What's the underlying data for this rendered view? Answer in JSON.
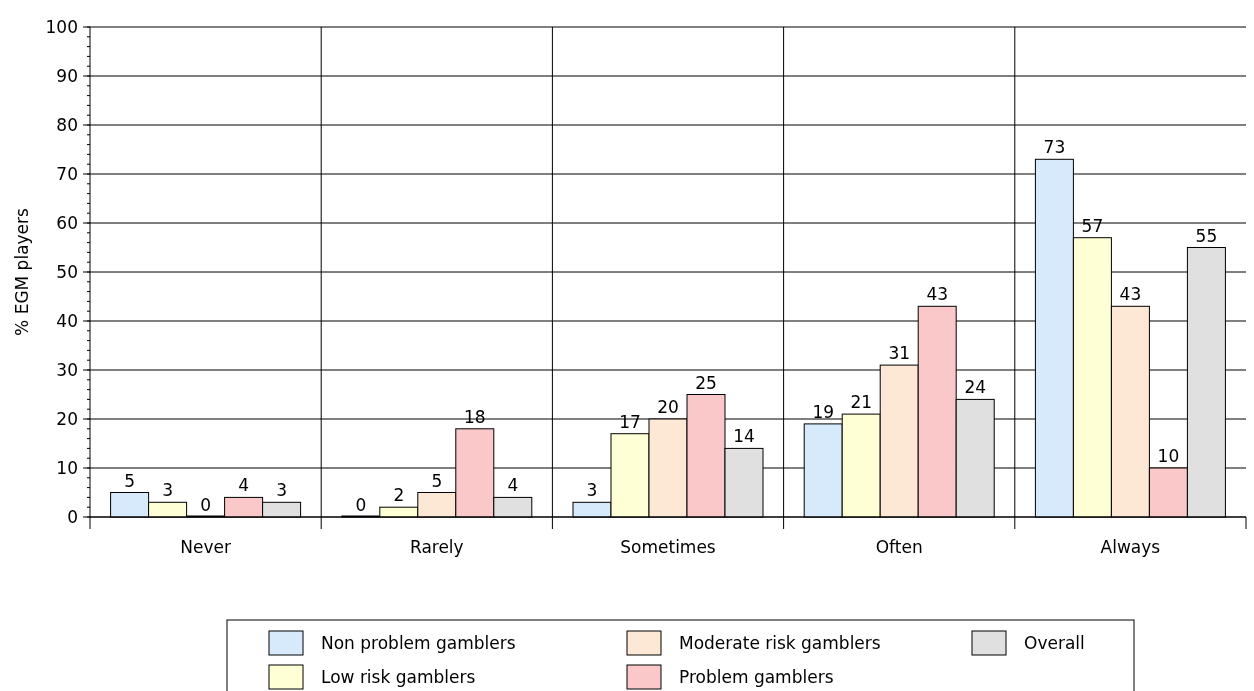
{
  "chart_data": {
    "type": "bar",
    "ylabel": "% EGM players",
    "categories": [
      "Never",
      "Rarely",
      "Sometimes",
      "Often",
      "Always"
    ],
    "series": [
      {
        "name": "Non problem gamblers",
        "color": "#d6eafb",
        "values": [
          5,
          0,
          3,
          19,
          73
        ]
      },
      {
        "name": "Low risk gamblers",
        "color": "#ffffd6",
        "values": [
          3,
          2,
          17,
          21,
          57
        ]
      },
      {
        "name": "Moderate risk gamblers",
        "color": "#fde8d6",
        "values": [
          0,
          5,
          20,
          31,
          43
        ]
      },
      {
        "name": "Problem gamblers",
        "color": "#fac8c8",
        "values": [
          4,
          18,
          25,
          43,
          10
        ]
      },
      {
        "name": "Overall",
        "color": "#e0e0e0",
        "values": [
          3,
          4,
          14,
          24,
          55
        ]
      }
    ],
    "ylim": [
      0,
      100
    ],
    "yticks": [
      0,
      10,
      20,
      30,
      40,
      50,
      60,
      70,
      80,
      90,
      100
    ],
    "grid": true,
    "data_labels": true,
    "legend": "bottom"
  }
}
